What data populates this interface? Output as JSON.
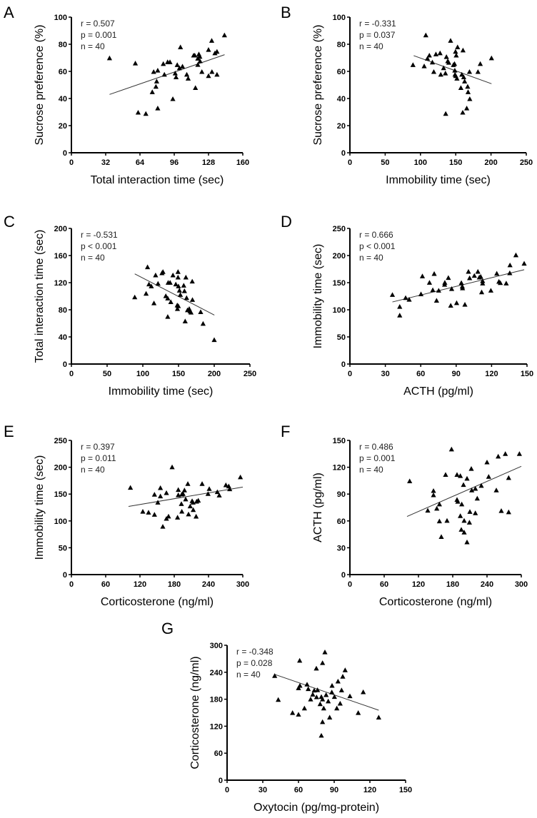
{
  "chart_data": [
    {
      "panel": "A",
      "type": "scatter",
      "xlabel": "Total interaction time (sec)",
      "ylabel": "Sucrose preference (%)",
      "xlim": [
        0,
        160
      ],
      "ylim": [
        0,
        100
      ],
      "xticks": [
        "0",
        "32",
        "64",
        "96",
        "128",
        "160"
      ],
      "yticks": [
        "0",
        "20",
        "40",
        "60",
        "80",
        "100"
      ],
      "stats": [
        "r = 0.507",
        "p = 0.001",
        "n = 40"
      ],
      "fit_line": [
        [
          35.6,
          43
        ],
        [
          143,
          72.3
        ]
      ],
      "points": [
        [
          35.6,
          69.6
        ],
        [
          59.7,
          65.8
        ],
        [
          62.3,
          29.5
        ],
        [
          69.5,
          28.6
        ],
        [
          75.5,
          44.6
        ],
        [
          76.8,
          59.5
        ],
        [
          78.9,
          48.6
        ],
        [
          79.6,
          52.5
        ],
        [
          80.6,
          60.5
        ],
        [
          80.6,
          32.6
        ],
        [
          85.8,
          65.4
        ],
        [
          86.8,
          57.5
        ],
        [
          89.8,
          66.7
        ],
        [
          92,
          66.7
        ],
        [
          94.7,
          39.5
        ],
        [
          96.9,
          58.4
        ],
        [
          97.7,
          55.6
        ],
        [
          98.8,
          64.6
        ],
        [
          100.9,
          62.3
        ],
        [
          101.8,
          77.7
        ],
        [
          103.7,
          63.5
        ],
        [
          107.7,
          57.5
        ],
        [
          109,
          54.6
        ],
        [
          114.1,
          71.6
        ],
        [
          115.2,
          71.6
        ],
        [
          115.8,
          47.7
        ],
        [
          118,
          69.3
        ],
        [
          118,
          64.7
        ],
        [
          119,
          72.5
        ],
        [
          119.9,
          70.7
        ],
        [
          120.1,
          67.4
        ],
        [
          121.8,
          59.5
        ],
        [
          128,
          75.8
        ],
        [
          128,
          56.5
        ],
        [
          131,
          82.5
        ],
        [
          131.2,
          59.5
        ],
        [
          134,
          73.3
        ],
        [
          135.9,
          74.4
        ],
        [
          135.9,
          57.5
        ],
        [
          142.9,
          86.5
        ]
      ]
    },
    {
      "panel": "B",
      "type": "scatter",
      "xlabel": "Immobility time (sec)",
      "ylabel": "Sucrose preference (%)",
      "xlim": [
        0,
        250
      ],
      "ylim": [
        0,
        100
      ],
      "xticks": [
        "0",
        "50",
        "100",
        "150",
        "200",
        "250"
      ],
      "yticks": [
        "0",
        "20",
        "40",
        "60",
        "80",
        "100"
      ],
      "stats": [
        "r = -0.331",
        "p = 0.037",
        "n = 40"
      ],
      "fit_line": [
        [
          90.4,
          71.6
        ],
        [
          200.7,
          50.9
        ]
      ],
      "points": [
        [
          89.4,
          64.6
        ],
        [
          105.3,
          63.7
        ],
        [
          107.6,
          86.5
        ],
        [
          109.9,
          69.3
        ],
        [
          112.6,
          71.6
        ],
        [
          116.9,
          66.5
        ],
        [
          118.9,
          59.5
        ],
        [
          121.9,
          72.5
        ],
        [
          127.8,
          73.3
        ],
        [
          128.8,
          57.5
        ],
        [
          132.8,
          62.3
        ],
        [
          135.4,
          58.4
        ],
        [
          135.8,
          28.6
        ],
        [
          136.8,
          70.5
        ],
        [
          138.7,
          67.4
        ],
        [
          140.1,
          66.3
        ],
        [
          142.7,
          82.5
        ],
        [
          146.7,
          64.6
        ],
        [
          148.3,
          65.4
        ],
        [
          148.7,
          60.5
        ],
        [
          149,
          57.5
        ],
        [
          150,
          56.5
        ],
        [
          149.7,
          74.4
        ],
        [
          150.7,
          71.6
        ],
        [
          151.7,
          54.6
        ],
        [
          152.6,
          77.7
        ],
        [
          157.3,
          47.7
        ],
        [
          158.6,
          57.5
        ],
        [
          160.3,
          75.4
        ],
        [
          159.9,
          29.5
        ],
        [
          161.3,
          55.6
        ],
        [
          162.6,
          52.5
        ],
        [
          165.6,
          32.6
        ],
        [
          166.9,
          48.6
        ],
        [
          167.5,
          44.6
        ],
        [
          169.5,
          59.5
        ],
        [
          169.9,
          39.5
        ],
        [
          181.5,
          59.5
        ],
        [
          184.8,
          65.4
        ],
        [
          200.7,
          69.6
        ]
      ]
    },
    {
      "panel": "C",
      "type": "scatter",
      "xlabel": "Immobility time (sec)",
      "ylabel": "Total interaction time (sec)",
      "xlim": [
        0,
        250
      ],
      "ylim": [
        0,
        200
      ],
      "xticks": [
        "0",
        "50",
        "100",
        "150",
        "200",
        "250"
      ],
      "yticks": [
        "0",
        "40",
        "80",
        "120",
        "160",
        "200"
      ],
      "stats": [
        "r = -0.531",
        "p < 0.001",
        "n = 40"
      ],
      "fit_line": [
        [
          88.7,
          133
        ],
        [
          200.2,
          72.2
        ]
      ],
      "points": [
        [
          88.7,
          98.2
        ],
        [
          104.6,
          103.5
        ],
        [
          106.6,
          142.6
        ],
        [
          108.6,
          117.3
        ],
        [
          111.9,
          114.4
        ],
        [
          115.6,
          89.4
        ],
        [
          117.9,
          130.6
        ],
        [
          121.3,
          118.3
        ],
        [
          126.8,
          133.8
        ],
        [
          128.2,
          135.6
        ],
        [
          132.2,
          100
        ],
        [
          134.9,
          96.5
        ],
        [
          134.9,
          69.4
        ],
        [
          135.5,
          119.7
        ],
        [
          138.2,
          119.7
        ],
        [
          139.2,
          91.2
        ],
        [
          142.2,
          130.6
        ],
        [
          146.2,
          117.3
        ],
        [
          148.2,
          86.3
        ],
        [
          148.5,
          81
        ],
        [
          149.3,
          135.6
        ],
        [
          149.3,
          127.5
        ],
        [
          149.9,
          114.4
        ],
        [
          151.3,
          108.1
        ],
        [
          152.6,
          101.8
        ],
        [
          157.3,
          115.5
        ],
        [
          158.3,
          107.4
        ],
        [
          159.3,
          62.7
        ],
        [
          160.3,
          127.5
        ],
        [
          161.3,
          97.2
        ],
        [
          162.6,
          79.2
        ],
        [
          165,
          81
        ],
        [
          166.3,
          77.5
        ],
        [
          167.5,
          75.7
        ],
        [
          169.2,
          121.5
        ],
        [
          169.5,
          94.4
        ],
        [
          181,
          76.4
        ],
        [
          184.4,
          59.2
        ],
        [
          200,
          35.2
        ],
        [
          149.7,
          85.2
        ]
      ]
    },
    {
      "panel": "D",
      "type": "scatter",
      "xlabel": "ACTH (pg/ml)",
      "ylabel": "Immobility time (sec)",
      "xlim": [
        0,
        150
      ],
      "ylim": [
        0,
        250
      ],
      "xticks": [
        "0",
        "30",
        "60",
        "90",
        "120",
        "150"
      ],
      "yticks": [
        "0",
        "50",
        "100",
        "150",
        "200",
        "250"
      ],
      "stats": [
        "r = 0.666",
        "p < 0.001",
        "n = 40"
      ],
      "fit_line": [
        [
          36,
          114.4
        ],
        [
          147.6,
          173.9
        ]
      ],
      "points": [
        [
          36,
          127.2
        ],
        [
          42.2,
          105.2
        ],
        [
          42.2,
          89.3
        ],
        [
          47.2,
          121.5
        ],
        [
          50.2,
          118.4
        ],
        [
          60.2,
          128.5
        ],
        [
          61.4,
          161.5
        ],
        [
          67.4,
          149.6
        ],
        [
          70.2,
          136
        ],
        [
          71.4,
          165.9
        ],
        [
          73.4,
          116.6
        ],
        [
          75.2,
          135.1
        ],
        [
          80.2,
          146.1
        ],
        [
          80.4,
          149.6
        ],
        [
          83.4,
          158.5
        ],
        [
          85.4,
          107.4
        ],
        [
          86.2,
          138.2
        ],
        [
          90.4,
          112.2
        ],
        [
          94.4,
          149.2
        ],
        [
          95.2,
          142.6
        ],
        [
          95.4,
          139.5
        ],
        [
          97.4,
          109.2
        ],
        [
          100.4,
          169.9
        ],
        [
          101.4,
          158
        ],
        [
          105.4,
          162.4
        ],
        [
          108.4,
          169.9
        ],
        [
          109.6,
          159.3
        ],
        [
          110.8,
          160.7
        ],
        [
          111.6,
          132
        ],
        [
          112.4,
          152.7
        ],
        [
          112.4,
          148.3
        ],
        [
          119.4,
          135.1
        ],
        [
          124.4,
          166.4
        ],
        [
          126.2,
          151.4
        ],
        [
          127.4,
          149.2
        ],
        [
          132.4,
          148.3
        ],
        [
          135.4,
          167.3
        ],
        [
          135.6,
          181.8
        ],
        [
          140.6,
          200.3
        ],
        [
          147.6,
          184.9
        ]
      ]
    },
    {
      "panel": "E",
      "type": "scatter",
      "xlabel": "Corticosterone (ng/ml)",
      "ylabel": "Immobility time (sec)",
      "xlim": [
        0,
        300
      ],
      "ylim": [
        0,
        250
      ],
      "xticks": [
        "0",
        "60",
        "120",
        "180",
        "240",
        "300"
      ],
      "yticks": [
        "0",
        "50",
        "100",
        "150",
        "200",
        "250"
      ],
      "stats": [
        "r = 0.397",
        "p = 0.011",
        "n = 40"
      ],
      "fit_line": [
        [
          100,
          127
        ],
        [
          300,
          163
        ]
      ],
      "points": [
        [
          103.3,
          161.6
        ],
        [
          176.3,
          199.8
        ],
        [
          135,
          115.3
        ],
        [
          145.4,
          111.3
        ],
        [
          145.4,
          148.7
        ],
        [
          151.3,
          134
        ],
        [
          155.8,
          161.1
        ],
        [
          155.8,
          145.6
        ],
        [
          166.3,
          151.8
        ],
        [
          166.3,
          103.8
        ],
        [
          185.8,
          106
        ],
        [
          187.1,
          157.6
        ],
        [
          187.1,
          147.8
        ],
        [
          192.5,
          131.3
        ],
        [
          193.3,
          149.1
        ],
        [
          193.3,
          117.1
        ],
        [
          195.4,
          150
        ],
        [
          197.9,
          156.7
        ],
        [
          203.8,
          168.7
        ],
        [
          207.9,
          126.9
        ],
        [
          211.3,
          136.7
        ],
        [
          212.9,
          134
        ],
        [
          213.3,
          120.2
        ],
        [
          218.3,
          107.8
        ],
        [
          219.2,
          135.8
        ],
        [
          222.1,
          137.6
        ],
        [
          228.8,
          168.7
        ],
        [
          239.2,
          150
        ],
        [
          241.3,
          159.3
        ],
        [
          255.4,
          153.5
        ],
        [
          258.8,
          147.3
        ],
        [
          270.4,
          166.4
        ],
        [
          275.4,
          164.2
        ],
        [
          277.1,
          158.9
        ],
        [
          295.8,
          181.1
        ],
        [
          160,
          89
        ],
        [
          125,
          117
        ],
        [
          170,
          108
        ],
        [
          205,
          112
        ],
        [
          200,
          140
        ]
      ]
    },
    {
      "panel": "F",
      "type": "scatter",
      "xlabel": "Corticosterone (ng/ml)",
      "ylabel": "ACTH (pg/ml)",
      "xlim": [
        0,
        300
      ],
      "ylim": [
        0,
        150
      ],
      "xticks": [
        "0",
        "60",
        "120",
        "180",
        "240",
        "300"
      ],
      "yticks": [
        "0",
        "30",
        "60",
        "90",
        "120",
        "150"
      ],
      "stats": [
        "r = 0.486",
        "p = 0.001",
        "n = 40"
      ],
      "fit_line": [
        [
          100,
          65
        ],
        [
          300,
          121
        ]
      ],
      "points": [
        [
          104.6,
          104.2
        ],
        [
          136.3,
          71.4
        ],
        [
          146.3,
          93.4
        ],
        [
          146.3,
          88.6
        ],
        [
          152.1,
          73.6
        ],
        [
          156.7,
          78.4
        ],
        [
          156.7,
          59.4
        ],
        [
          167.5,
          111.4
        ],
        [
          177.9,
          139.8
        ],
        [
          187.5,
          111.4
        ],
        [
          187.5,
          83.5
        ],
        [
          188.8,
          81.4
        ],
        [
          193.3,
          110.1
        ],
        [
          193.3,
          65.3
        ],
        [
          195.8,
          78.4
        ],
        [
          198.8,
          100.1
        ],
        [
          205,
          107.1
        ],
        [
          209.2,
          58
        ],
        [
          213.3,
          94
        ],
        [
          219.6,
          95.8
        ],
        [
          219.6,
          68.5
        ],
        [
          222.9,
          84.9
        ],
        [
          230,
          99.1
        ],
        [
          240,
          125.3
        ],
        [
          242.9,
          109.2
        ],
        [
          256.3,
          94
        ],
        [
          259.6,
          131.8
        ],
        [
          272.1,
          134.7
        ],
        [
          277.9,
          107.9
        ],
        [
          277.9,
          69.6
        ],
        [
          296.7,
          134.7
        ],
        [
          212.5,
          118.1
        ],
        [
          160,
          42
        ],
        [
          200,
          47
        ],
        [
          205,
          36
        ],
        [
          195,
          50
        ],
        [
          200,
          60
        ],
        [
          210,
          70
        ],
        [
          170,
          60
        ],
        [
          265,
          71
        ]
      ]
    },
    {
      "panel": "G",
      "type": "scatter",
      "xlabel": "Oxytocin (pg/mg-protein)",
      "ylabel": "Corticosterone (ng/ml)",
      "xlim": [
        0,
        150
      ],
      "ylim": [
        0,
        300
      ],
      "xticks": [
        "0",
        "30",
        "60",
        "90",
        "120",
        "150"
      ],
      "yticks": [
        "0",
        "60",
        "120",
        "180",
        "240",
        "300"
      ],
      "stats": [
        "r = -0.348",
        "p = 0.028",
        "n = 40"
      ],
      "fit_line": [
        [
          40,
          235.2
        ],
        [
          127.4,
          155.6
        ]
      ],
      "points": [
        [
          40,
          231.5
        ],
        [
          43,
          178.4
        ],
        [
          55,
          149.2
        ],
        [
          60,
          145.5
        ],
        [
          60,
          204.4
        ],
        [
          61,
          265.5
        ],
        [
          61.2,
          209.7
        ],
        [
          65,
          159.3
        ],
        [
          67.2,
          212.4
        ],
        [
          68.2,
          202.3
        ],
        [
          70.2,
          179.4
        ],
        [
          73.2,
          199.1
        ],
        [
          75,
          248
        ],
        [
          75.2,
          184.2
        ],
        [
          78.2,
          168.8
        ],
        [
          79.2,
          184.8
        ],
        [
          79.2,
          98.7
        ],
        [
          80.2,
          260.2
        ],
        [
          80.2,
          179.4
        ],
        [
          80.2,
          129
        ],
        [
          81.2,
          159.3
        ],
        [
          82.2,
          284.1
        ],
        [
          83.2,
          189
        ],
        [
          86.2,
          139.1
        ],
        [
          88.2,
          209.7
        ],
        [
          90.2,
          184.8
        ],
        [
          92.2,
          159.3
        ],
        [
          93.2,
          219.3
        ],
        [
          96.2,
          199.6
        ],
        [
          97.2,
          229.9
        ],
        [
          99.2,
          244.2
        ],
        [
          103.2,
          186.4
        ],
        [
          110.2,
          149.2
        ],
        [
          114.4,
          195.4
        ],
        [
          127.4,
          139.1
        ],
        [
          76,
          200
        ],
        [
          85,
          175
        ],
        [
          72,
          190
        ],
        [
          95,
          170
        ],
        [
          88,
          195
        ]
      ]
    }
  ],
  "colors": {
    "marker": "#000000",
    "axis": "#000000",
    "fit_line": "#333333"
  }
}
